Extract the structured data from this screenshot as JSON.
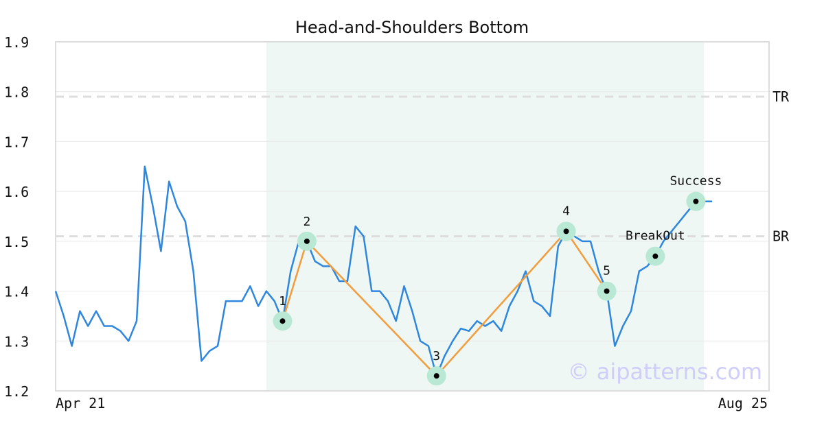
{
  "chart_data": {
    "type": "line",
    "title": "Head-and-Shoulders Bottom",
    "ylim": [
      1.2,
      1.9
    ],
    "yticks": [
      "1.9",
      "1.8",
      "1.7",
      "1.6",
      "1.5",
      "1.4",
      "1.3",
      "1.2"
    ],
    "x_tick_labels": [
      "Apr 21",
      "Aug 25"
    ],
    "grid": true,
    "series": [
      {
        "values": [
          1.4,
          1.35,
          1.29,
          1.36,
          1.33,
          1.36,
          1.33,
          1.33,
          1.32,
          1.3,
          1.34,
          1.65,
          1.57,
          1.48,
          1.62,
          1.57,
          1.54,
          1.44,
          1.26,
          1.28,
          1.29,
          1.38,
          1.38,
          1.38,
          1.41,
          1.37,
          1.4,
          1.38,
          1.34,
          1.44,
          1.5,
          1.5,
          1.46,
          1.45,
          1.45,
          1.42,
          1.42,
          1.53,
          1.51,
          1.4,
          1.4,
          1.38,
          1.34,
          1.41,
          1.36,
          1.3,
          1.29,
          1.23,
          1.27,
          1.3,
          1.325,
          1.32,
          1.34,
          1.33,
          1.34,
          1.32,
          1.37,
          1.4,
          1.44,
          1.38,
          1.37,
          1.35,
          1.49,
          1.52,
          1.51,
          1.5,
          1.5,
          1.44,
          1.4,
          1.29,
          1.33,
          1.36,
          1.44,
          1.45,
          1.47,
          1.5,
          1.52,
          1.54,
          1.56,
          1.58,
          1.58,
          1.58
        ]
      }
    ],
    "pattern_region": {
      "start_index": 26,
      "end_index": 80
    },
    "pattern_points": [
      {
        "label": "1",
        "index": 28,
        "value": 1.34
      },
      {
        "label": "2",
        "index": 31,
        "value": 1.5
      },
      {
        "label": "3",
        "index": 47,
        "value": 1.23
      },
      {
        "label": "4",
        "index": 63,
        "value": 1.52
      },
      {
        "label": "5",
        "index": 68,
        "value": 1.4
      }
    ],
    "signal_points": [
      {
        "label": "BreakOut",
        "index": 74,
        "value": 1.47
      },
      {
        "label": "Success",
        "index": 79,
        "value": 1.58
      }
    ],
    "reference_lines": [
      {
        "label": "TR",
        "value": 1.79
      },
      {
        "label": "BR",
        "value": 1.51
      }
    ],
    "watermark": "© aipatterns.com",
    "colors": {
      "price_line": "#2e86de",
      "pattern_line": "#f39c3c",
      "marker_halo": "#b9e8d4",
      "marker_dot": "#000000",
      "region_fill": "#eef7f3",
      "reference_line": "#dddddd",
      "grid": "#e8e8e8",
      "axis": "#dddddd",
      "watermark": "#cfcdfa",
      "text": "#111111"
    }
  }
}
